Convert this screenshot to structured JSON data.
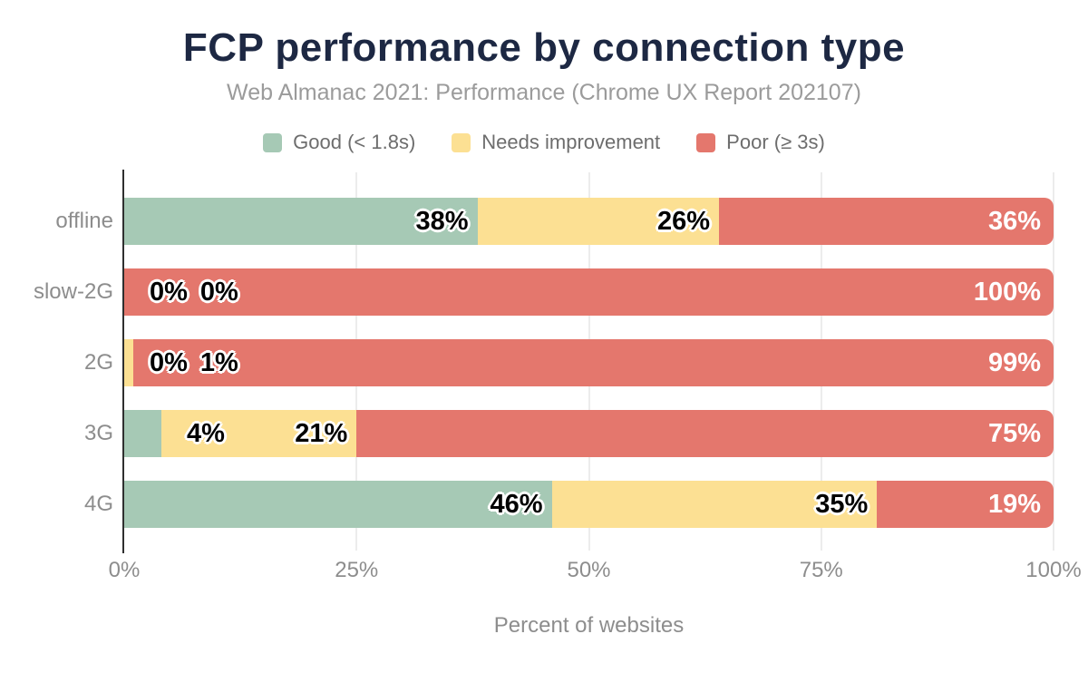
{
  "chart_data": {
    "type": "bar",
    "stacked": true,
    "orientation": "horizontal",
    "title": "FCP performance by connection type",
    "subtitle": "Web Almanac 2021: Performance (Chrome UX Report 202107)",
    "xlabel": "Percent of websites",
    "xlim": [
      0,
      100
    ],
    "value_suffix": "%",
    "grid": "vertical",
    "legend_position": "top",
    "categories": [
      "offline",
      "slow-2G",
      "2G",
      "3G",
      "4G"
    ],
    "x_ticks": [
      {
        "value": 0,
        "label": "0%"
      },
      {
        "value": 25,
        "label": "25%"
      },
      {
        "value": 50,
        "label": "50%"
      },
      {
        "value": 75,
        "label": "75%"
      },
      {
        "value": 100,
        "label": "100%"
      }
    ],
    "series": [
      {
        "key": "good",
        "name": "Good (< 1.8s)",
        "color": "#a6c9b5",
        "label_style": "dark",
        "values": [
          38,
          0,
          0,
          4,
          46
        ]
      },
      {
        "key": "needs-improvement",
        "name": "Needs improvement",
        "color": "#fce093",
        "label_style": "dark",
        "values": [
          26,
          0,
          1,
          21,
          35
        ]
      },
      {
        "key": "poor",
        "name": "Poor (≥ 3s)",
        "color": "#e4776d",
        "label_style": "light",
        "values": [
          36,
          100,
          99,
          75,
          19
        ]
      }
    ]
  },
  "styles": {
    "title_color": "#1d2843",
    "subtitle_color": "#9b9b9b",
    "axis_text_color": "#8d8d8d",
    "legend_text_color": "#6d6d6d",
    "grid_color": "#ececec",
    "axis_line_color": "#2f2f2f",
    "background": "#ffffff"
  }
}
